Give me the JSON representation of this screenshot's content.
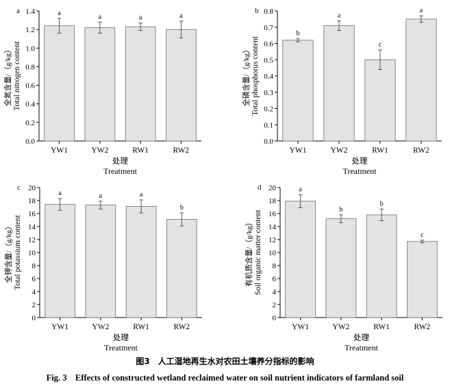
{
  "figure": {
    "caption_cn": "图3　人工湿地再生水对农田土壤养分指标的影响",
    "caption_en": "Fig. 3　Effects of constructed wetland reclaimed water on soil nutrient indicators of farmland soil"
  },
  "chart_data": [
    {
      "id": "a",
      "panel_label": "a",
      "type": "bar",
      "categories": [
        "YW1",
        "YW2",
        "RW1",
        "RW2"
      ],
      "values": [
        1.24,
        1.22,
        1.23,
        1.2
      ],
      "errors": [
        0.08,
        0.06,
        0.04,
        0.09
      ],
      "letters": [
        "a",
        "a",
        "a",
        "a"
      ],
      "ylabel_cn": "全氮含量/（g/kg）",
      "ylabel": "Total nitrogen content",
      "xlabel_cn": "处理",
      "xlabel": "Treatment",
      "ylim": [
        0,
        1.4
      ],
      "yticks": [
        0.0,
        0.2,
        0.4,
        0.6,
        0.8,
        1.0,
        1.2,
        1.4
      ],
      "ytick_labels": [
        "0.0",
        "0.2",
        "0.4",
        "0.6",
        "0.8",
        "1.0",
        "1.2",
        "1.4"
      ],
      "bar_color": "#e3e3e3"
    },
    {
      "id": "b",
      "panel_label": "b",
      "type": "bar",
      "categories": [
        "YW1",
        "YW2",
        "RW1",
        "RW2"
      ],
      "values": [
        0.62,
        0.71,
        0.5,
        0.75
      ],
      "errors": [
        0.01,
        0.03,
        0.06,
        0.02
      ],
      "letters": [
        "b",
        "a",
        "c",
        "a"
      ],
      "ylabel_cn": "全磷含量/（g/kg）",
      "ylabel": "Total phosphorus content",
      "xlabel_cn": "处理",
      "xlabel": "Treatment",
      "ylim": [
        0,
        0.8
      ],
      "yticks": [
        0.0,
        0.1,
        0.2,
        0.3,
        0.4,
        0.5,
        0.6,
        0.7,
        0.8
      ],
      "ytick_labels": [
        "0.0",
        "0.1",
        "0.2",
        "0.3",
        "0.4",
        "0.5",
        "0.6",
        "0.7",
        "0.8"
      ],
      "bar_color": "#e3e3e3"
    },
    {
      "id": "c",
      "panel_label": "c",
      "type": "bar",
      "categories": [
        "YW1",
        "YW2",
        "RW1",
        "RW2"
      ],
      "values": [
        17.4,
        17.3,
        17.1,
        15.1
      ],
      "errors": [
        0.9,
        0.6,
        1.0,
        1.0
      ],
      "letters": [
        "a",
        "a",
        "a",
        "b"
      ],
      "ylabel_cn": "全钾含量/（g/kg）",
      "ylabel": "Total potassium content",
      "xlabel_cn": "处理",
      "xlabel": "Treatment",
      "ylim": [
        0,
        20
      ],
      "yticks": [
        0,
        2,
        4,
        6,
        8,
        10,
        12,
        14,
        16,
        18,
        20
      ],
      "ytick_labels": [
        "0",
        "2",
        "4",
        "6",
        "8",
        "10",
        "12",
        "14",
        "16",
        "18",
        "20"
      ],
      "bar_color": "#e3e3e3"
    },
    {
      "id": "d",
      "panel_label": "d",
      "type": "bar",
      "categories": [
        "YW1",
        "YW2",
        "RW1",
        "RW2"
      ],
      "values": [
        17.9,
        15.2,
        15.8,
        11.7
      ],
      "errors": [
        1.0,
        0.6,
        0.9,
        0.2
      ],
      "letters": [
        "a",
        "b",
        "b",
        "c"
      ],
      "ylabel_cn": "有机质含量/（g/kg）",
      "ylabel": "Soil organic matter content",
      "xlabel_cn": "处理",
      "xlabel": "Treatment",
      "ylim": [
        0,
        20
      ],
      "yticks": [
        0,
        2,
        4,
        6,
        8,
        10,
        12,
        14,
        16,
        18,
        20
      ],
      "ytick_labels": [
        "0",
        "2",
        "4",
        "6",
        "8",
        "10",
        "12",
        "14",
        "16",
        "18",
        "20"
      ],
      "bar_color": "#e3e3e3"
    }
  ]
}
